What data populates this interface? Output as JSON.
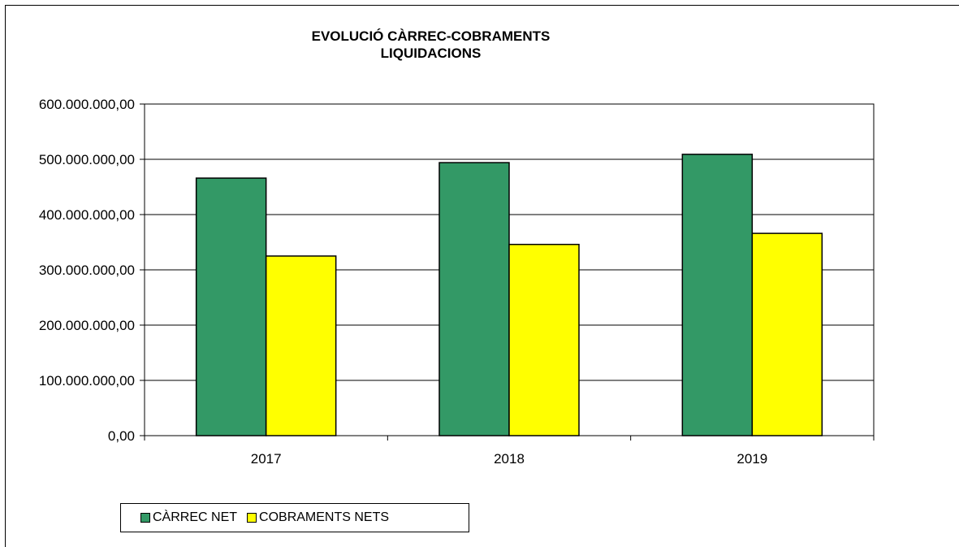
{
  "chart_data": {
    "type": "bar",
    "title": "EVOLUCIÓ CÀRREC-COBRAMENTS",
    "subtitle": "LIQUIDACIONS",
    "categories": [
      "2017",
      "2018",
      "2019"
    ],
    "series": [
      {
        "name": "CÀRREC NET",
        "color": "#339966",
        "values": [
          466000000,
          494000000,
          509000000
        ]
      },
      {
        "name": "COBRAMENTS NETS",
        "color": "#FFFF00",
        "values": [
          325000000,
          346000000,
          366000000
        ]
      }
    ],
    "ylim": [
      0,
      600000000
    ],
    "yticks": [
      0,
      100000000,
      200000000,
      300000000,
      400000000,
      500000000,
      600000000
    ],
    "ytick_labels": [
      "0,00",
      "100.000.000,00",
      "200.000.000,00",
      "300.000.000,00",
      "400.000.000,00",
      "500.000.000,00",
      "600.000.000,00"
    ],
    "grid": true,
    "legend": "bottom-left"
  }
}
